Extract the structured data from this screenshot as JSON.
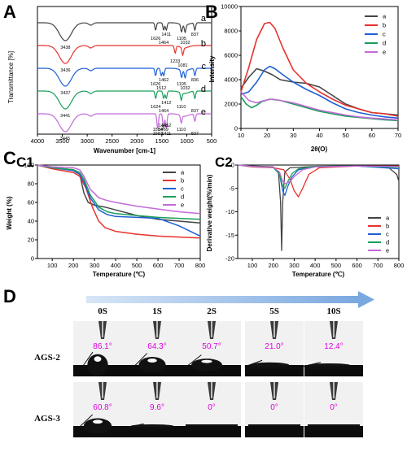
{
  "colors": {
    "a": "#444444",
    "b": "#e8322e",
    "c": "#1f5fd6",
    "d": "#1a9e5a",
    "e": "#c36ad8",
    "angle_text": "#e000e0",
    "arrow": "#8cb6e8"
  },
  "panel_labels": {
    "A": "A",
    "B": "B",
    "C": "C",
    "C1": "C1",
    "C2": "C2",
    "D": "D"
  },
  "chart_data": [
    {
      "type": "line",
      "panel": "A",
      "ylabel": "Transmittance [%]",
      "xlabel": "Wavenumber [cm-1]",
      "xlim": [
        4000,
        500
      ],
      "xticks": [
        "4000",
        "3500",
        "3000",
        "2500",
        "2000",
        "1500",
        "1000",
        "500"
      ],
      "series": [
        {
          "name": "a",
          "peaks": [
            {
              "x": 3438,
              "label": "3438"
            },
            {
              "x": 1626,
              "label": "1626"
            },
            {
              "x": 1464,
              "label": "1464"
            },
            {
              "x": 1411,
              "label": "1411"
            },
            {
              "x": 1105,
              "label": "1105"
            },
            {
              "x": 1032,
              "label": "1032"
            },
            {
              "x": 837,
              "label": "837"
            }
          ]
        },
        {
          "name": "b",
          "peaks": [
            {
              "x": 3436,
              "label": "3436"
            },
            {
              "x": 1233,
              "label": "1233"
            },
            {
              "x": 1081,
              "label": "1081"
            }
          ]
        },
        {
          "name": "c",
          "peaks": [
            {
              "x": 3437,
              "label": "3437"
            },
            {
              "x": 1626,
              "label": "1626"
            },
            {
              "x": 1512,
              "label": "1512"
            },
            {
              "x": 1462,
              "label": "1462"
            },
            {
              "x": 1105,
              "label": "1105"
            },
            {
              "x": 1032,
              "label": "1032"
            },
            {
              "x": 836,
              "label": "836"
            }
          ]
        },
        {
          "name": "d",
          "peaks": [
            {
              "x": 3441,
              "label": "3441"
            },
            {
              "x": 1624,
              "label": "1624"
            },
            {
              "x": 1464,
              "label": "1464"
            },
            {
              "x": 1412,
              "label": "1412"
            },
            {
              "x": 1110,
              "label": "1110"
            },
            {
              "x": 837,
              "label": "837"
            }
          ]
        },
        {
          "name": "e",
          "peaks": [
            {
              "x": 3445,
              "label": "3445"
            },
            {
              "x": 1584,
              "label": "1584"
            },
            {
              "x": 1583,
              "label": "1583"
            },
            {
              "x": 1465,
              "label": "1465"
            },
            {
              "x": 1469,
              "label": "1469"
            },
            {
              "x": 1411,
              "label": "1411"
            },
            {
              "x": 1412,
              "label": "1412"
            },
            {
              "x": 1110,
              "label": "1110"
            },
            {
              "x": 837,
              "label": "837"
            }
          ]
        }
      ]
    },
    {
      "type": "line",
      "panel": "B",
      "ylabel": "Intensity",
      "xlabel": "2θ(O)",
      "xlim": [
        10,
        70
      ],
      "ylim": [
        0,
        10000
      ],
      "xticks": [
        "10",
        "20",
        "30",
        "40",
        "50",
        "60",
        "70"
      ],
      "yticks": [
        "0",
        "2000",
        "4000",
        "6000",
        "8000",
        "10000"
      ],
      "legend": "top-right",
      "series": [
        {
          "name": "a",
          "x": [
            10,
            13,
            16,
            19,
            22,
            25,
            30,
            35,
            40,
            45,
            50,
            55,
            60,
            65,
            70
          ],
          "values": [
            3300,
            4200,
            4900,
            4700,
            4400,
            4000,
            3800,
            3700,
            3400,
            2700,
            2000,
            1600,
            1300,
            1200,
            1100
          ]
        },
        {
          "name": "b",
          "x": [
            10,
            13,
            16,
            19,
            21,
            23,
            26,
            30,
            35,
            40,
            45,
            50,
            55,
            60,
            65,
            70
          ],
          "values": [
            3000,
            5000,
            7300,
            8600,
            8700,
            8200,
            6600,
            4800,
            3700,
            3000,
            2400,
            1900,
            1600,
            1300,
            1200,
            1000
          ]
        },
        {
          "name": "c",
          "x": [
            10,
            13,
            16,
            19,
            21,
            23,
            26,
            30,
            35,
            40,
            45,
            50,
            55,
            60,
            65,
            70
          ],
          "values": [
            2800,
            3000,
            3800,
            4800,
            5100,
            4900,
            4400,
            3800,
            3200,
            2700,
            2100,
            1600,
            1300,
            1100,
            950,
            850
          ]
        },
        {
          "name": "d",
          "x": [
            10,
            12,
            14,
            16,
            18,
            21,
            25,
            30,
            35,
            40,
            45,
            50,
            55,
            60,
            65,
            70
          ],
          "values": [
            2600,
            2000,
            1700,
            1900,
            2200,
            2400,
            2300,
            2000,
            1700,
            1400,
            1200,
            1000,
            900,
            800,
            700,
            650
          ]
        },
        {
          "name": "e",
          "x": [
            10,
            13,
            16,
            19,
            22,
            25,
            30,
            35,
            40,
            45,
            50,
            55,
            60,
            65,
            70
          ],
          "values": [
            3000,
            2300,
            2100,
            2300,
            2400,
            2300,
            2100,
            1800,
            1500,
            1300,
            1100,
            950,
            850,
            780,
            700
          ]
        }
      ]
    },
    {
      "type": "line",
      "panel": "C1",
      "ylabel": "Weight (%)",
      "xlabel": "Temperature (℃)",
      "xlim": [
        30,
        800
      ],
      "ylim": [
        0,
        100
      ],
      "xticks": [
        "100",
        "200",
        "300",
        "400",
        "500",
        "600",
        "700",
        "800"
      ],
      "yticks": [
        "0",
        "20",
        "40",
        "60",
        "80",
        "100"
      ],
      "legend": "top-right",
      "series": [
        {
          "name": "a",
          "x": [
            30,
            100,
            200,
            230,
            250,
            270,
            300,
            350,
            400,
            500,
            600,
            700,
            800
          ],
          "values": [
            100,
            97,
            95,
            90,
            70,
            60,
            57,
            55,
            52,
            46,
            42,
            40,
            38
          ]
        },
        {
          "name": "b",
          "x": [
            30,
            100,
            200,
            230,
            260,
            290,
            320,
            350,
            400,
            500,
            600,
            700,
            800
          ],
          "values": [
            100,
            96,
            92,
            88,
            75,
            55,
            40,
            33,
            29,
            26,
            24,
            23,
            22
          ]
        },
        {
          "name": "c",
          "x": [
            30,
            100,
            200,
            230,
            250,
            280,
            320,
            360,
            400,
            500,
            600,
            700,
            800
          ],
          "values": [
            100,
            97,
            94,
            90,
            82,
            65,
            52,
            47,
            45,
            44,
            43,
            35,
            24
          ]
        },
        {
          "name": "d",
          "x": [
            30,
            100,
            200,
            230,
            250,
            280,
            320,
            360,
            400,
            500,
            600,
            700,
            800
          ],
          "values": [
            100,
            97,
            95,
            92,
            85,
            68,
            55,
            50,
            48,
            46,
            44,
            43,
            42
          ]
        },
        {
          "name": "e",
          "x": [
            30,
            100,
            200,
            230,
            250,
            280,
            320,
            360,
            400,
            500,
            600,
            700,
            800
          ],
          "values": [
            100,
            98,
            97,
            95,
            88,
            74,
            65,
            62,
            60,
            56,
            53,
            50,
            48
          ]
        }
      ]
    },
    {
      "type": "line",
      "panel": "C2",
      "ylabel": "Derivative weight(%/min)",
      "xlabel": "Temperature (℃)",
      "xlim": [
        30,
        800
      ],
      "ylim": [
        -20,
        0
      ],
      "xticks": [
        "100",
        "200",
        "300",
        "400",
        "500",
        "600",
        "700",
        "800"
      ],
      "yticks": [
        "0",
        "-5",
        "-10",
        "-15",
        "-20"
      ],
      "legend": "right",
      "series": [
        {
          "name": "a",
          "x": [
            30,
            100,
            200,
            225,
            235,
            240,
            245,
            255,
            280,
            400,
            600,
            750,
            790,
            800
          ],
          "values": [
            0,
            -0.2,
            -0.4,
            -1.5,
            -8,
            -18.3,
            -8,
            -1.5,
            -0.6,
            -0.3,
            -0.2,
            -0.5,
            -2,
            -3.5
          ]
        },
        {
          "name": "b",
          "x": [
            30,
            100,
            200,
            250,
            280,
            300,
            320,
            340,
            370,
            420,
            600,
            800
          ],
          "values": [
            0,
            -0.4,
            -0.6,
            -1,
            -3,
            -5.5,
            -6.8,
            -5,
            -2,
            -0.6,
            -0.2,
            -0.2
          ]
        },
        {
          "name": "c",
          "x": [
            30,
            100,
            200,
            230,
            245,
            255,
            270,
            290,
            320,
            400,
            600,
            800
          ],
          "values": [
            0,
            -0.3,
            -0.5,
            -2,
            -5.5,
            -6.5,
            -4.5,
            -2.5,
            -1,
            -0.4,
            -0.2,
            -0.8
          ]
        },
        {
          "name": "d",
          "x": [
            30,
            100,
            200,
            230,
            245,
            255,
            270,
            290,
            320,
            400,
            600,
            800
          ],
          "values": [
            0,
            -0.3,
            -0.5,
            -2,
            -4.5,
            -5,
            -3.5,
            -1.8,
            -0.8,
            -0.3,
            -0.2,
            -0.5
          ]
        },
        {
          "name": "e",
          "x": [
            30,
            100,
            200,
            230,
            245,
            260,
            280,
            300,
            340,
            400,
            600,
            800
          ],
          "values": [
            0,
            -0.3,
            -0.5,
            -1.5,
            -3.5,
            -4,
            -3.5,
            -2.5,
            -1,
            -0.4,
            -0.2,
            -0.3
          ]
        }
      ]
    }
  ],
  "contact_angle": {
    "times": [
      "0S",
      "1S",
      "2S",
      "5S",
      "10S"
    ],
    "rows": [
      {
        "sample": "AGS-2",
        "angles": [
          "86.1°",
          "64.3°",
          "50.7°",
          "21.0°",
          "12.4°"
        ],
        "angle_values": [
          86.1,
          64.3,
          50.7,
          21.0,
          12.4
        ]
      },
      {
        "sample": "AGS-3",
        "angles": [
          "60.8°",
          "9.6°",
          "0°",
          "0°",
          "0°"
        ],
        "angle_values": [
          60.8,
          9.6,
          0,
          0,
          0
        ]
      }
    ]
  }
}
